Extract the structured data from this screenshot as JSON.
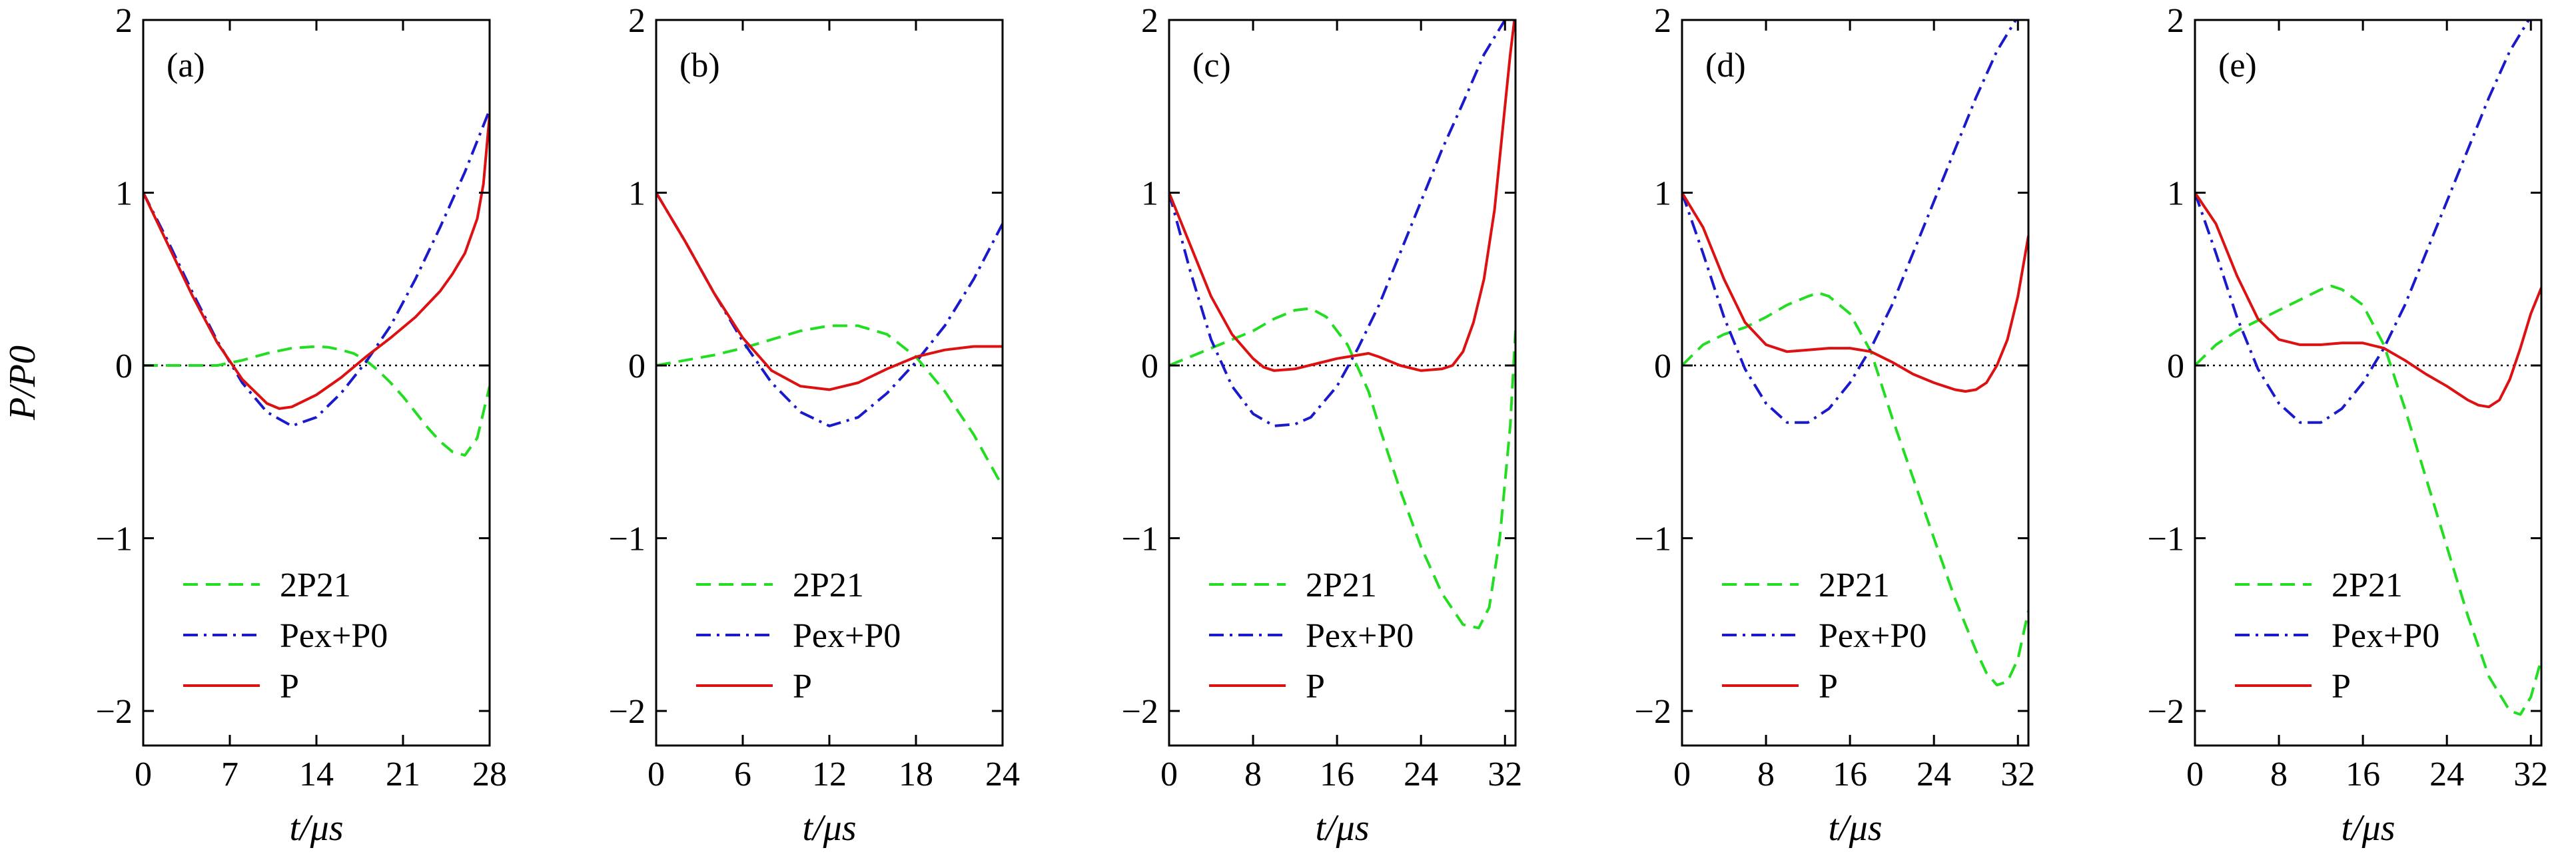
{
  "y_axis_label": "P/P0",
  "x_axis_label": "t/μs",
  "legend": [
    {
      "key": "s21",
      "label": "2P21",
      "color": "#22dd22",
      "dash": "22 12"
    },
    {
      "key": "pex",
      "label": "Pex+P0",
      "color": "#1a1acc",
      "dash": "22 9 4 9"
    },
    {
      "key": "p",
      "label": "P",
      "color": "#dd1111",
      "dash": ""
    }
  ],
  "chart_data": [
    {
      "type": "line",
      "panel_label": "(a)",
      "xlim": [
        0,
        28
      ],
      "ylim": [
        -2.2,
        2
      ],
      "xticks": [
        0,
        7,
        14,
        21,
        28
      ],
      "yticks": [
        -2,
        -1,
        0,
        1,
        2
      ],
      "series": [
        {
          "key": "s21",
          "x": [
            0,
            3,
            6,
            8,
            10,
            12,
            14,
            15,
            16,
            17,
            18,
            19,
            20,
            21,
            22,
            23,
            24,
            25,
            26,
            27,
            28
          ],
          "y": [
            0,
            0,
            0,
            0.03,
            0.07,
            0.1,
            0.11,
            0.105,
            0.09,
            0.07,
            0.03,
            -0.03,
            -0.1,
            -0.18,
            -0.27,
            -0.36,
            -0.44,
            -0.5,
            -0.52,
            -0.42,
            -0.12
          ]
        },
        {
          "key": "pex",
          "x": [
            0,
            2,
            4,
            6,
            8,
            10,
            12,
            14,
            16,
            18,
            20,
            22,
            24,
            26,
            28
          ],
          "y": [
            1,
            0.72,
            0.42,
            0.14,
            -0.1,
            -0.27,
            -0.35,
            -0.3,
            -0.16,
            0.02,
            0.23,
            0.5,
            0.8,
            1.12,
            1.48
          ]
        },
        {
          "key": "p",
          "x": [
            0,
            2,
            4,
            6,
            8,
            10,
            11,
            12,
            14,
            16,
            18,
            20,
            22,
            24,
            25,
            26,
            27,
            27.5,
            28
          ],
          "y": [
            1,
            0.7,
            0.4,
            0.13,
            -0.08,
            -0.22,
            -0.25,
            -0.24,
            -0.17,
            -0.07,
            0.05,
            0.16,
            0.28,
            0.43,
            0.53,
            0.65,
            0.85,
            1.05,
            1.45
          ]
        }
      ]
    },
    {
      "type": "line",
      "panel_label": "(b)",
      "xlim": [
        0,
        24
      ],
      "ylim": [
        -2.2,
        2
      ],
      "xticks": [
        0,
        6,
        12,
        18,
        24
      ],
      "yticks": [
        -2,
        -1,
        0,
        1,
        2
      ],
      "series": [
        {
          "key": "s21",
          "x": [
            0,
            2,
            4,
            6,
            8,
            10,
            12,
            14,
            16,
            18,
            20,
            22,
            23,
            24
          ],
          "y": [
            0,
            0.03,
            0.06,
            0.1,
            0.15,
            0.2,
            0.23,
            0.23,
            0.18,
            0.05,
            -0.15,
            -0.4,
            -0.55,
            -0.7
          ]
        },
        {
          "key": "pex",
          "x": [
            0,
            2,
            4,
            6,
            8,
            10,
            12,
            14,
            16,
            18,
            20,
            22,
            24
          ],
          "y": [
            1,
            0.72,
            0.42,
            0.14,
            -0.1,
            -0.27,
            -0.35,
            -0.3,
            -0.16,
            0.02,
            0.23,
            0.5,
            0.82
          ]
        },
        {
          "key": "p",
          "x": [
            0,
            2,
            4,
            6,
            8,
            10,
            12,
            14,
            16,
            18,
            20,
            22,
            24
          ],
          "y": [
            1,
            0.72,
            0.42,
            0.16,
            -0.03,
            -0.12,
            -0.14,
            -0.1,
            -0.02,
            0.05,
            0.09,
            0.11,
            0.11
          ]
        }
      ]
    },
    {
      "type": "line",
      "panel_label": "(c)",
      "xlim": [
        0,
        33
      ],
      "ylim": [
        -2.2,
        2
      ],
      "xticks": [
        0,
        8,
        16,
        24,
        32
      ],
      "yticks": [
        -2,
        -1,
        0,
        1,
        2
      ],
      "series": [
        {
          "key": "s21",
          "x": [
            0,
            2,
            4,
            6,
            8,
            10,
            12,
            13.5,
            15,
            17,
            19,
            20,
            22,
            24,
            26,
            28,
            29.5,
            30.5,
            31.5,
            32.5,
            33
          ],
          "y": [
            0,
            0.05,
            0.1,
            0.15,
            0.2,
            0.27,
            0.32,
            0.33,
            0.28,
            0.12,
            -0.15,
            -0.35,
            -0.72,
            -1.05,
            -1.32,
            -1.5,
            -1.52,
            -1.4,
            -1.0,
            -0.35,
            0.2
          ]
        },
        {
          "key": "pex",
          "x": [
            0,
            2,
            4,
            6,
            8,
            10,
            12,
            13.5,
            16,
            18,
            20,
            22,
            24,
            26,
            28,
            30,
            32,
            32.5
          ],
          "y": [
            1,
            0.55,
            0.15,
            -0.12,
            -0.28,
            -0.35,
            -0.34,
            -0.3,
            -0.12,
            0.1,
            0.35,
            0.65,
            0.95,
            1.25,
            1.52,
            1.8,
            2.0,
            2.05
          ]
        },
        {
          "key": "p",
          "x": [
            0,
            2,
            4,
            6,
            8,
            9,
            10,
            12,
            14,
            16,
            18,
            19,
            20,
            22,
            24,
            26,
            27,
            28,
            29,
            30,
            31,
            32,
            32.5,
            33
          ],
          "y": [
            1,
            0.7,
            0.4,
            0.18,
            0.04,
            -0.01,
            -0.03,
            -0.02,
            0.01,
            0.04,
            0.06,
            0.07,
            0.05,
            0.0,
            -0.03,
            -0.02,
            0.0,
            0.08,
            0.25,
            0.5,
            0.9,
            1.5,
            1.8,
            2.05
          ]
        }
      ]
    },
    {
      "type": "line",
      "panel_label": "(d)",
      "xlim": [
        0,
        33
      ],
      "ylim": [
        -2.2,
        2
      ],
      "xticks": [
        0,
        8,
        16,
        24,
        32
      ],
      "yticks": [
        -2,
        -1,
        0,
        1,
        2
      ],
      "series": [
        {
          "key": "s21",
          "x": [
            0,
            2,
            4,
            6,
            8,
            10,
            12,
            13,
            14,
            16,
            18,
            20,
            22,
            24,
            26,
            28,
            29,
            30,
            31,
            32,
            33
          ],
          "y": [
            0,
            0.12,
            0.18,
            0.22,
            0.28,
            0.35,
            0.4,
            0.42,
            0.4,
            0.3,
            0.08,
            -0.3,
            -0.65,
            -1.0,
            -1.35,
            -1.65,
            -1.78,
            -1.85,
            -1.83,
            -1.7,
            -1.42
          ]
        },
        {
          "key": "pex",
          "x": [
            0,
            2,
            4,
            6,
            8,
            10,
            12,
            14,
            16,
            18,
            20,
            22,
            24,
            26,
            28,
            30,
            32,
            33
          ],
          "y": [
            1,
            0.65,
            0.28,
            -0.02,
            -0.22,
            -0.33,
            -0.33,
            -0.25,
            -0.1,
            0.1,
            0.35,
            0.65,
            0.95,
            1.25,
            1.55,
            1.82,
            2.02,
            2.1
          ]
        },
        {
          "key": "p",
          "x": [
            0,
            2,
            4,
            6,
            8,
            10,
            12,
            14,
            16,
            18,
            20,
            22,
            24,
            26,
            27,
            28,
            29,
            30,
            31,
            32,
            33
          ],
          "y": [
            1,
            0.8,
            0.5,
            0.25,
            0.12,
            0.08,
            0.09,
            0.1,
            0.1,
            0.08,
            0.02,
            -0.05,
            -0.1,
            -0.14,
            -0.15,
            -0.14,
            -0.1,
            0.0,
            0.15,
            0.4,
            0.75
          ]
        }
      ]
    },
    {
      "type": "line",
      "panel_label": "(e)",
      "xlim": [
        0,
        33
      ],
      "ylim": [
        -2.2,
        2
      ],
      "xticks": [
        0,
        8,
        16,
        24,
        32
      ],
      "yticks": [
        -2,
        -1,
        0,
        1,
        2
      ],
      "series": [
        {
          "key": "s21",
          "x": [
            0,
            2,
            4,
            6,
            8,
            10,
            12,
            13,
            14,
            16,
            18,
            20,
            22,
            24,
            26,
            28,
            30,
            31,
            32,
            33
          ],
          "y": [
            0,
            0.12,
            0.2,
            0.26,
            0.32,
            0.38,
            0.44,
            0.46,
            0.44,
            0.35,
            0.12,
            -0.25,
            -0.65,
            -1.05,
            -1.45,
            -1.8,
            -2.0,
            -2.02,
            -1.92,
            -1.7
          ]
        },
        {
          "key": "pex",
          "x": [
            0,
            2,
            4,
            6,
            8,
            10,
            12,
            14,
            16,
            18,
            20,
            22,
            24,
            26,
            28,
            30,
            32,
            33
          ],
          "y": [
            1,
            0.65,
            0.28,
            -0.02,
            -0.22,
            -0.33,
            -0.33,
            -0.25,
            -0.1,
            0.1,
            0.35,
            0.65,
            0.95,
            1.25,
            1.55,
            1.82,
            2.02,
            2.1
          ]
        },
        {
          "key": "p",
          "x": [
            0,
            2,
            4,
            6,
            8,
            10,
            12,
            14,
            16,
            18,
            20,
            22,
            24,
            26,
            27,
            28,
            29,
            30,
            31,
            32,
            33
          ],
          "y": [
            1,
            0.82,
            0.52,
            0.27,
            0.15,
            0.12,
            0.12,
            0.13,
            0.13,
            0.1,
            0.03,
            -0.05,
            -0.12,
            -0.2,
            -0.23,
            -0.24,
            -0.2,
            -0.08,
            0.1,
            0.3,
            0.45
          ]
        }
      ]
    }
  ]
}
